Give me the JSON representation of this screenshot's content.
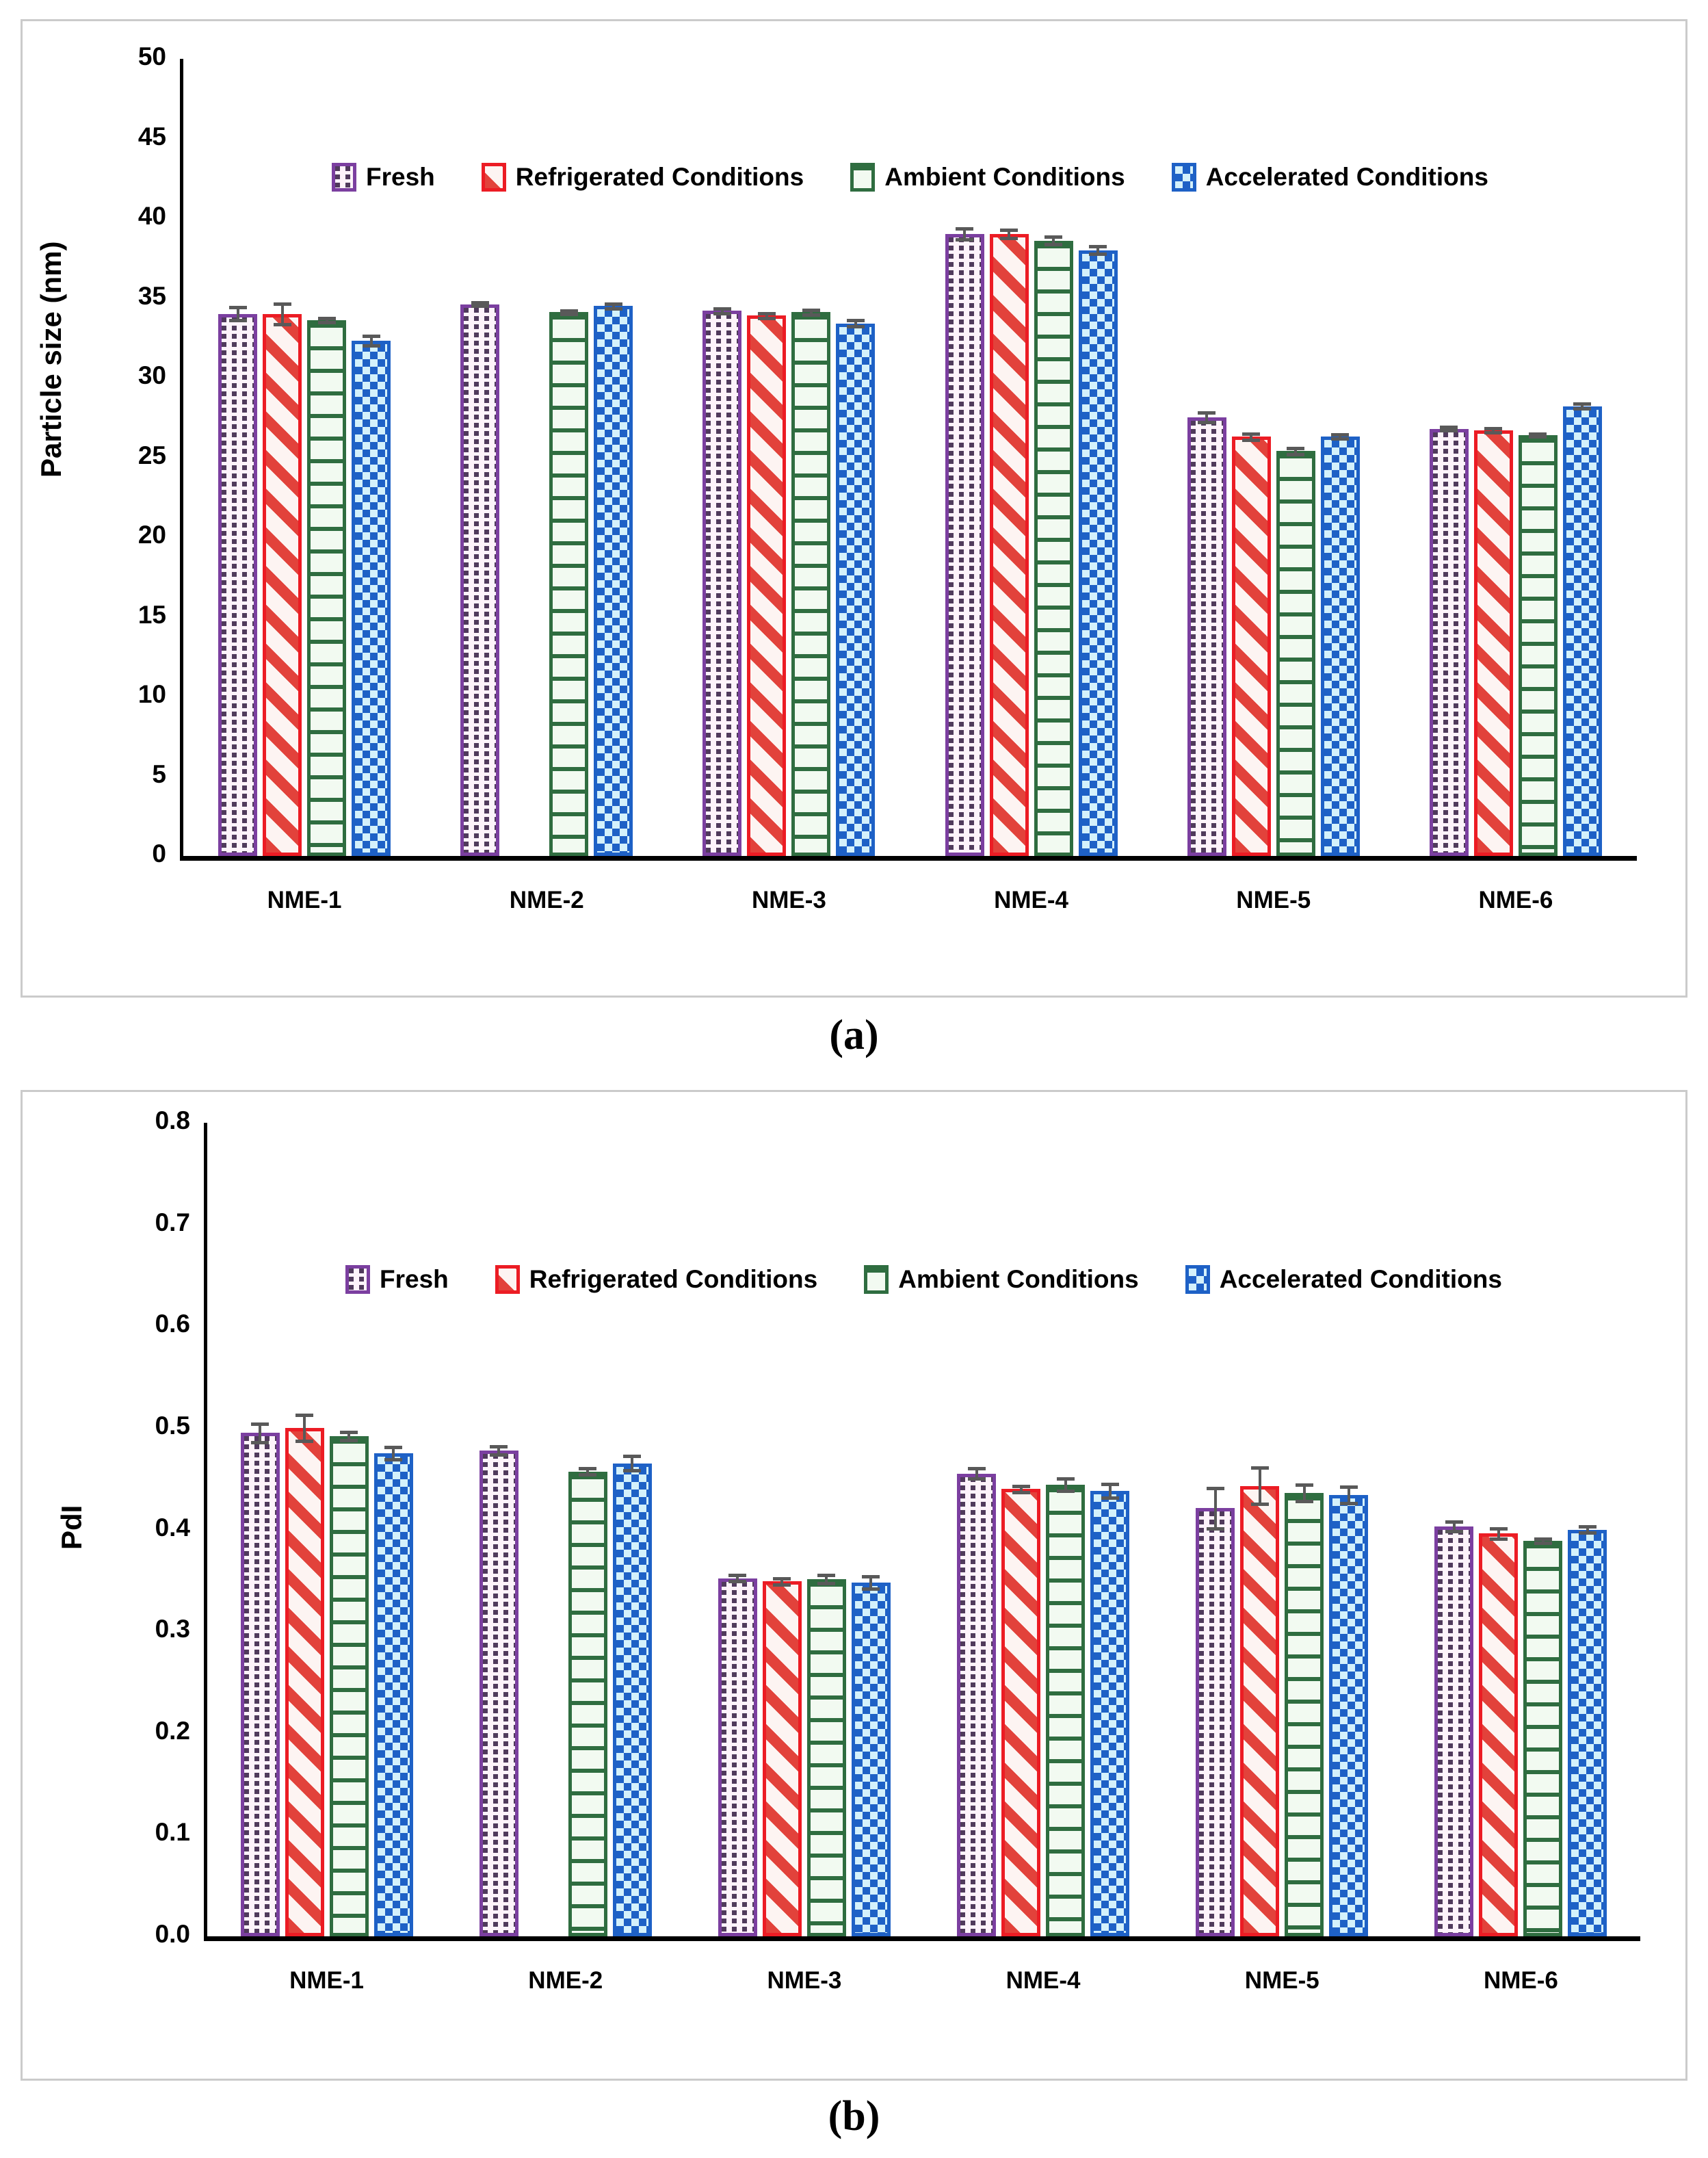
{
  "figure": {
    "caption_a": "(a)",
    "caption_b": "(b)"
  },
  "colors": {
    "fresh_border": "#7b3fa0",
    "refrigerated_border": "#ec1c24",
    "ambient_border": "#2f6d40",
    "accelerated_border": "#1e61c6",
    "error_bar": "#595959",
    "axis": "#000000",
    "panel_border": "#cbcbcb"
  },
  "chart_data": [
    {
      "type": "bar",
      "title": "",
      "xlabel": "",
      "ylabel": "Particle size (nm)",
      "ylim": [
        0,
        50
      ],
      "ytick_step": 5,
      "ytick_labels": [
        "0",
        "5",
        "10",
        "15",
        "20",
        "25",
        "30",
        "35",
        "40",
        "45",
        "50"
      ],
      "grid": false,
      "legend_position": "inside-top",
      "categories": [
        "NME-1",
        "NME-2",
        "NME-3",
        "NME-4",
        "NME-5",
        "NME-6"
      ],
      "series": [
        {
          "name": "Fresh",
          "pattern": "dots",
          "color": "#7b3fa0",
          "values": [
            34.0,
            34.6,
            34.2,
            39.0,
            27.5,
            26.8
          ],
          "errors": [
            0.4,
            0.1,
            0.15,
            0.35,
            0.3,
            0.1
          ]
        },
        {
          "name": "Refrigerated Conditions",
          "pattern": "diag",
          "color": "#ec1c24",
          "values": [
            34.0,
            null,
            33.9,
            39.0,
            26.3,
            26.7
          ],
          "errors": [
            0.65,
            null,
            0.15,
            0.25,
            0.2,
            0.12
          ]
        },
        {
          "name": "Ambient Conditions",
          "pattern": "hlines",
          "color": "#2f6d40",
          "values": [
            33.6,
            34.1,
            34.1,
            38.6,
            25.4,
            26.4
          ],
          "errors": [
            0.12,
            0.1,
            0.15,
            0.22,
            0.2,
            0.08
          ]
        },
        {
          "name": "Accelerated Conditions",
          "pattern": "check",
          "color": "#1e61c6",
          "values": [
            32.3,
            34.5,
            33.4,
            38.0,
            26.3,
            28.2
          ],
          "errors": [
            0.3,
            0.15,
            0.2,
            0.25,
            0.12,
            0.15
          ]
        }
      ]
    },
    {
      "type": "bar",
      "title": "",
      "xlabel": "",
      "ylabel": "PdI",
      "ylim": [
        0,
        0.8
      ],
      "ytick_step": 0.1,
      "ytick_labels": [
        "0.0",
        "0.1",
        "0.2",
        "0.3",
        "0.4",
        "0.5",
        "0.6",
        "0.7",
        "0.8"
      ],
      "grid": false,
      "legend_position": "inside-top",
      "categories": [
        "NME-1",
        "NME-2",
        "NME-3",
        "NME-4",
        "NME-5",
        "NME-6"
      ],
      "series": [
        {
          "name": "Fresh",
          "pattern": "dots",
          "color": "#7b3fa0",
          "values": [
            0.495,
            0.478,
            0.352,
            0.455,
            0.421,
            0.403
          ],
          "errors": [
            0.009,
            0.004,
            0.003,
            0.005,
            0.02,
            0.005
          ]
        },
        {
          "name": "Refrigerated Conditions",
          "pattern": "diag",
          "color": "#ec1c24",
          "values": [
            0.5,
            null,
            0.349,
            0.44,
            0.443,
            0.396
          ],
          "errors": [
            0.013,
            null,
            0.003,
            0.003,
            0.018,
            0.005
          ]
        },
        {
          "name": "Ambient Conditions",
          "pattern": "hlines",
          "color": "#2f6d40",
          "values": [
            0.492,
            0.457,
            0.351,
            0.444,
            0.436,
            0.389
          ],
          "errors": [
            0.004,
            0.003,
            0.004,
            0.006,
            0.008,
            0.002
          ]
        },
        {
          "name": "Accelerated Conditions",
          "pattern": "check",
          "color": "#1e61c6",
          "values": [
            0.475,
            0.465,
            0.348,
            0.438,
            0.434,
            0.4
          ],
          "errors": [
            0.006,
            0.007,
            0.006,
            0.007,
            0.008,
            0.003
          ]
        }
      ]
    }
  ]
}
